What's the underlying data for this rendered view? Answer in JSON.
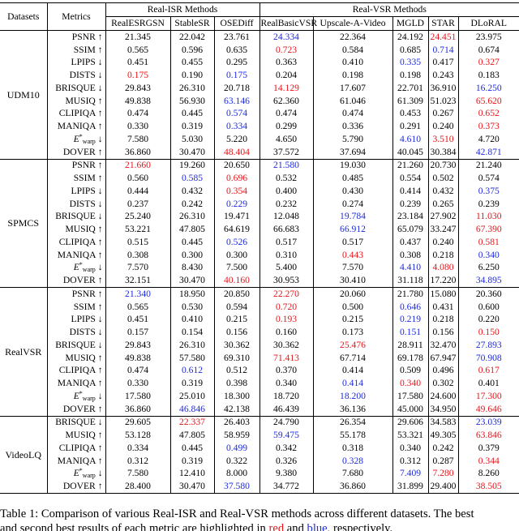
{
  "headers": {
    "datasets": "Datasets",
    "metrics": "Metrics",
    "group_isr": "Real-ISR Methods",
    "group_vsr": "Real-VSR Methods",
    "methods": [
      "RealESRGSN",
      "StableSR",
      "OSEDiff",
      "RealBasicVSR",
      "Upscale-A-Video",
      "MGLD",
      "STAR",
      "DLoRAL"
    ]
  },
  "colors": {
    "best": "#e8141a",
    "second": "#1f2bdc"
  },
  "sections": [
    {
      "dataset": "UDM10",
      "rows": [
        {
          "metric": "PSNR ↑",
          "values": [
            "21.345",
            "22.042",
            "23.761",
            "24.334",
            "22.364",
            "24.192",
            "24.451",
            "23.975"
          ],
          "marks": [
            "",
            "",
            "",
            "b",
            "",
            "",
            "r",
            ""
          ]
        },
        {
          "metric": "SSIM ↑",
          "values": [
            "0.565",
            "0.596",
            "0.635",
            "0.723",
            "0.584",
            "0.685",
            "0.714",
            "0.674"
          ],
          "marks": [
            "",
            "",
            "",
            "r",
            "",
            "",
            "b",
            ""
          ]
        },
        {
          "metric": "LPIPS ↓",
          "values": [
            "0.451",
            "0.455",
            "0.295",
            "0.363",
            "0.410",
            "0.335",
            "0.417",
            "0.327"
          ],
          "marks": [
            "",
            "",
            "",
            "",
            "",
            "b",
            "",
            "r"
          ]
        },
        {
          "metric": "DISTS ↓",
          "values": [
            "0.175",
            "0.190",
            "0.175",
            "0.204",
            "0.198",
            "0.198",
            "0.243",
            "0.183"
          ],
          "marks": [
            "r",
            "",
            "b",
            "",
            "",
            "",
            "",
            ""
          ]
        },
        {
          "metric": "BRISQUE ↓",
          "values": [
            "29.843",
            "26.310",
            "20.718",
            "14.129",
            "17.607",
            "22.701",
            "36.910",
            "16.250"
          ],
          "marks": [
            "",
            "",
            "",
            "r",
            "",
            "",
            "",
            "b"
          ]
        },
        {
          "metric": "MUSIQ ↑",
          "values": [
            "49.838",
            "56.930",
            "63.146",
            "62.360",
            "61.046",
            "61.309",
            "51.023",
            "65.620"
          ],
          "marks": [
            "",
            "",
            "b",
            "",
            "",
            "",
            "",
            "r"
          ]
        },
        {
          "metric": "CLIPIQA ↑",
          "values": [
            "0.474",
            "0.445",
            "0.574",
            "0.474",
            "0.474",
            "0.453",
            "0.267",
            "0.652"
          ],
          "marks": [
            "",
            "",
            "b",
            "",
            "",
            "",
            "",
            "r"
          ]
        },
        {
          "metric": "MANIQA ↑",
          "values": [
            "0.330",
            "0.319",
            "0.334",
            "0.299",
            "0.336",
            "0.291",
            "0.240",
            "0.373"
          ],
          "marks": [
            "",
            "",
            "b",
            "",
            "",
            "",
            "",
            "r"
          ]
        },
        {
          "metric": "Ewarp",
          "values": [
            "7.580",
            "5.030",
            "5.220",
            "4.650",
            "5.790",
            "4.610",
            "3.510",
            "4.720"
          ],
          "marks": [
            "",
            "",
            "",
            "",
            "",
            "b",
            "r",
            ""
          ]
        },
        {
          "metric": "DOVER ↑",
          "values": [
            "36.860",
            "30.470",
            "48.404",
            "37.572",
            "37.694",
            "40.045",
            "30.384",
            "42.871"
          ],
          "marks": [
            "",
            "",
            "r",
            "",
            "",
            "",
            "",
            "b"
          ]
        }
      ]
    },
    {
      "dataset": "SPMCS",
      "rows": [
        {
          "metric": "PSNR ↑",
          "values": [
            "21.660",
            "19.260",
            "20.650",
            "21.580",
            "19.030",
            "21.260",
            "20.730",
            "21.240"
          ],
          "marks": [
            "r",
            "",
            "",
            "b",
            "",
            "",
            "",
            ""
          ]
        },
        {
          "metric": "SSIM ↑",
          "values": [
            "0.560",
            "0.585",
            "0.696",
            "0.532",
            "0.485",
            "0.554",
            "0.502",
            "0.574"
          ],
          "marks": [
            "",
            "b",
            "r",
            "",
            "",
            "",
            "",
            ""
          ]
        },
        {
          "metric": "LPIPS ↓",
          "values": [
            "0.444",
            "0.432",
            "0.354",
            "0.400",
            "0.430",
            "0.414",
            "0.432",
            "0.375"
          ],
          "marks": [
            "",
            "",
            "r",
            "",
            "",
            "",
            "",
            "b"
          ]
        },
        {
          "metric": "DISTS ↓",
          "values": [
            "0.237",
            "0.242",
            "0.229",
            "0.232",
            "0.274",
            "0.239",
            "0.265",
            "0.239"
          ],
          "marks": [
            "",
            "",
            "b",
            "",
            "",
            "",
            "",
            ""
          ]
        },
        {
          "metric": "BRISQUE ↓",
          "values": [
            "25.240",
            "26.310",
            "19.471",
            "12.048",
            "19.784",
            "23.184",
            "27.902",
            "11.030"
          ],
          "marks": [
            "",
            "",
            "",
            "",
            "b",
            "",
            "",
            "r"
          ]
        },
        {
          "metric": "MUSIQ ↑",
          "values": [
            "53.221",
            "47.805",
            "64.619",
            "66.683",
            "66.912",
            "65.079",
            "33.247",
            "67.390"
          ],
          "marks": [
            "",
            "",
            "",
            "",
            "b",
            "",
            "",
            "r"
          ]
        },
        {
          "metric": "CLIPIQA ↑",
          "values": [
            "0.515",
            "0.445",
            "0.526",
            "0.517",
            "0.517",
            "0.437",
            "0.240",
            "0.581"
          ],
          "marks": [
            "",
            "",
            "b",
            "",
            "",
            "",
            "",
            "r"
          ]
        },
        {
          "metric": "MANIQA ↑",
          "values": [
            "0.308",
            "0.300",
            "0.300",
            "0.310",
            "0.443",
            "0.308",
            "0.218",
            "0.340"
          ],
          "marks": [
            "",
            "",
            "",
            "",
            "r",
            "",
            "",
            "b"
          ]
        },
        {
          "metric": "Ewarp",
          "values": [
            "7.570",
            "8.430",
            "7.500",
            "5.400",
            "7.570",
            "4.410",
            "4.080",
            "6.250"
          ],
          "marks": [
            "",
            "",
            "",
            "",
            "",
            "b",
            "r",
            ""
          ]
        },
        {
          "metric": "DOVER ↑",
          "values": [
            "32.151",
            "30.470",
            "40.160",
            "30.953",
            "30.410",
            "31.118",
            "17.220",
            "34.895"
          ],
          "marks": [
            "",
            "",
            "r",
            "",
            "",
            "",
            "",
            "b"
          ]
        }
      ]
    },
    {
      "dataset": "RealVSR",
      "rows": [
        {
          "metric": "PSNR ↑",
          "values": [
            "21.340",
            "18.950",
            "20.850",
            "22.270",
            "20.060",
            "21.780",
            "15.080",
            "20.360"
          ],
          "marks": [
            "b",
            "",
            "",
            "r",
            "",
            "",
            "",
            ""
          ]
        },
        {
          "metric": "SSIM ↑",
          "values": [
            "0.565",
            "0.530",
            "0.594",
            "0.720",
            "0.500",
            "0.646",
            "0.431",
            "0.600"
          ],
          "marks": [
            "",
            "",
            "",
            "r",
            "",
            "b",
            "",
            ""
          ]
        },
        {
          "metric": "LPIPS ↓",
          "values": [
            "0.451",
            "0.410",
            "0.215",
            "0.193",
            "0.215",
            "0.219",
            "0.218",
            "0.220"
          ],
          "marks": [
            "",
            "",
            "",
            "r",
            "",
            "b",
            "",
            ""
          ]
        },
        {
          "metric": "DISTS ↓",
          "values": [
            "0.157",
            "0.154",
            "0.156",
            "0.160",
            "0.173",
            "0.151",
            "0.156",
            "0.150"
          ],
          "marks": [
            "",
            "",
            "",
            "",
            "",
            "b",
            "",
            "r"
          ]
        },
        {
          "metric": "BRISQUE ↓",
          "values": [
            "29.843",
            "26.310",
            "30.362",
            "30.362",
            "25.476",
            "28.911",
            "32.470",
            "27.893"
          ],
          "marks": [
            "",
            "",
            "",
            "",
            "r",
            "",
            "",
            "b"
          ]
        },
        {
          "metric": "MUSIQ ↑",
          "values": [
            "49.838",
            "57.580",
            "69.310",
            "71.413",
            "67.714",
            "69.178",
            "67.947",
            "70.908"
          ],
          "marks": [
            "",
            "",
            "",
            "r",
            "",
            "",
            "",
            "b"
          ]
        },
        {
          "metric": "CLIPIQA ↑",
          "values": [
            "0.474",
            "0.612",
            "0.512",
            "0.370",
            "0.414",
            "0.509",
            "0.496",
            "0.617"
          ],
          "marks": [
            "",
            "b",
            "",
            "",
            "",
            "",
            "",
            "r"
          ]
        },
        {
          "metric": "MANIQA ↑",
          "values": [
            "0.330",
            "0.319",
            "0.398",
            "0.340",
            "0.414",
            "0.340",
            "0.302",
            "0.401"
          ],
          "marks": [
            "",
            "",
            "",
            "",
            "b",
            "r",
            "",
            ""
          ]
        },
        {
          "metric": "Ewarp",
          "values": [
            "17.580",
            "25.010",
            "18.300",
            "18.720",
            "18.200",
            "17.580",
            "24.600",
            "17.300"
          ],
          "marks": [
            "",
            "",
            "",
            "",
            "b",
            "",
            "",
            "r"
          ]
        },
        {
          "metric": "DOVER ↑",
          "values": [
            "36.860",
            "46.846",
            "42.138",
            "46.439",
            "36.136",
            "45.000",
            "34.950",
            "49.646"
          ],
          "marks": [
            "",
            "b",
            "",
            "",
            "",
            "",
            "",
            "r"
          ]
        }
      ]
    },
    {
      "dataset": "VideoLQ",
      "rows": [
        {
          "metric": "BRISQUE ↓",
          "values": [
            "29.605",
            "22.337",
            "26.403",
            "24.790",
            "26.354",
            "29.606",
            "34.583",
            "23.039"
          ],
          "marks": [
            "",
            "r",
            "",
            "",
            "",
            "",
            "",
            "b"
          ]
        },
        {
          "metric": "MUSIQ ↑",
          "values": [
            "53.128",
            "47.805",
            "58.959",
            "59.475",
            "55.178",
            "53.321",
            "49.305",
            "63.846"
          ],
          "marks": [
            "",
            "",
            "",
            "b",
            "",
            "",
            "",
            "r"
          ]
        },
        {
          "metric": "CLIPIQA ↑",
          "values": [
            "0.334",
            "0.445",
            "0.499",
            "0.342",
            "0.318",
            "0.340",
            "0.242",
            "0.379"
          ],
          "marks": [
            "",
            "",
            "b",
            "",
            "",
            "",
            "",
            ""
          ]
        },
        {
          "metric": "MANIQA ↑",
          "values": [
            "0.312",
            "0.319",
            "0.322",
            "0.326",
            "0.328",
            "0.312",
            "0.287",
            "0.344"
          ],
          "marks": [
            "",
            "",
            "",
            "",
            "b",
            "",
            "",
            "r"
          ]
        },
        {
          "metric": "Ewarp",
          "values": [
            "7.580",
            "12.410",
            "8.000",
            "9.380",
            "7.680",
            "7.409",
            "7.280",
            "8.260"
          ],
          "marks": [
            "",
            "",
            "",
            "",
            "",
            "b",
            "r",
            ""
          ]
        },
        {
          "metric": "DOVER ↑",
          "values": [
            "28.400",
            "30.470",
            "37.580",
            "34.772",
            "36.860",
            "31.899",
            "29.400",
            "38.505"
          ],
          "marks": [
            "",
            "",
            "b",
            "",
            "",
            "",
            "",
            "r"
          ]
        }
      ]
    }
  ],
  "caption": {
    "line1": "Table 1: Comparison of various Real-ISR and Real-VSR methods across different datasets. The best",
    "line2_pre": "and second best results of each metric are highlighted in ",
    "red_word": "red",
    "line2_mid": " and ",
    "blue_word": "blue",
    "line2_post": ", respectively."
  }
}
